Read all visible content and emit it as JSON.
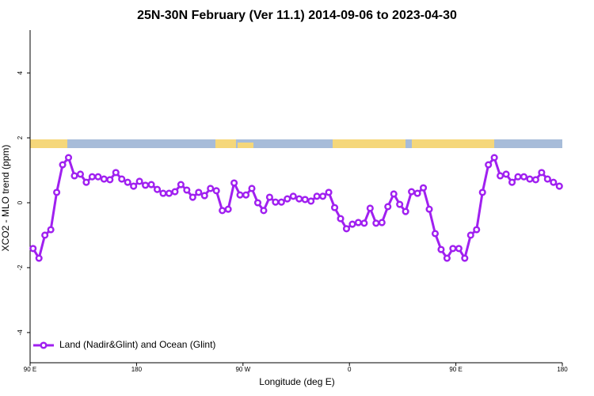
{
  "chart_data": {
    "type": "line",
    "title": "25N-30N February (Ver 11.1)   2014-09-06 to 2023-04-30",
    "x_label": "Longitude (deg E)",
    "y_label": "XCO2 - MLO trend (ppm)",
    "x": [
      92.5,
      97.5,
      102.5,
      107.5,
      112.5,
      117.5,
      122.5,
      127.5,
      132.5,
      137.5,
      142.5,
      147.5,
      152.5,
      157.5,
      162.5,
      167.5,
      172.5,
      177.5,
      182.5,
      187.5,
      192.5,
      197.5,
      202.5,
      207.5,
      212.5,
      217.5,
      222.5,
      227.5,
      232.5,
      237.5,
      242.5,
      247.5,
      252.5,
      257.5,
      262.5,
      267.5,
      272.5,
      277.5,
      282.5,
      287.5,
      292.5,
      297.5,
      302.5,
      307.5,
      312.5,
      317.5,
      322.5,
      327.5,
      332.5,
      337.5,
      342.5,
      347.5,
      352.5,
      357.5,
      362.5,
      367.5,
      372.5,
      377.5,
      382.5,
      387.5,
      392.5,
      397.5,
      402.5,
      407.5,
      412.5,
      417.5,
      422.5,
      427.5,
      432.5,
      437.5,
      442.5,
      447.5,
      452.5,
      457.5,
      462.5,
      467.5,
      472.5,
      477.5,
      482.5,
      487.5,
      492.5,
      497.5,
      502.5,
      507.5,
      512.5,
      517.5,
      522.5,
      527.5,
      532.5,
      537.5
    ],
    "series": [
      {
        "name": "Land (Nadir&Glint) and Ocean (Glint)",
        "color": "#a020f0",
        "values": [
          -1.41,
          -1.71,
          -1.0,
          -0.83,
          0.32,
          1.17,
          1.39,
          0.83,
          0.88,
          0.63,
          0.8,
          0.8,
          0.73,
          0.71,
          0.93,
          0.73,
          0.63,
          0.51,
          0.66,
          0.54,
          0.56,
          0.41,
          0.29,
          0.29,
          0.34,
          0.56,
          0.39,
          0.17,
          0.32,
          0.22,
          0.44,
          0.37,
          -0.24,
          -0.2,
          0.61,
          0.24,
          0.24,
          0.44,
          0.0,
          -0.24,
          0.17,
          0.02,
          0.02,
          0.12,
          0.2,
          0.12,
          0.1,
          0.05,
          0.2,
          0.2,
          0.32,
          -0.15,
          -0.49,
          -0.8,
          -0.66,
          -0.61,
          -0.63,
          -0.17,
          -0.63,
          -0.61,
          -0.12,
          0.27,
          -0.05,
          -0.27,
          0.34,
          0.29,
          0.46,
          -0.2,
          -0.95,
          -1.44,
          -1.71,
          -1.41,
          -1.41,
          -1.71,
          -1.0,
          -0.83,
          0.32,
          1.17,
          1.39,
          0.83,
          0.88,
          0.63,
          0.8,
          0.8,
          0.73,
          0.71,
          0.93,
          0.73,
          0.63,
          0.51
        ]
      }
    ],
    "xlim": [
      90,
      540
    ],
    "xticks": [
      {
        "value": 90,
        "label": "90 E"
      },
      180,
      {
        "value": 270,
        "label": "90 W"
      },
      {
        "value": 360,
        "label": "0"
      },
      {
        "value": 450,
        "label": "90 E"
      },
      {
        "value": 540,
        "label": "180"
      }
    ],
    "ylim": [
      -4.93,
      5.32
    ],
    "yticks": [
      -4,
      -2,
      0,
      2,
      4
    ],
    "legend": "bottom-left"
  }
}
